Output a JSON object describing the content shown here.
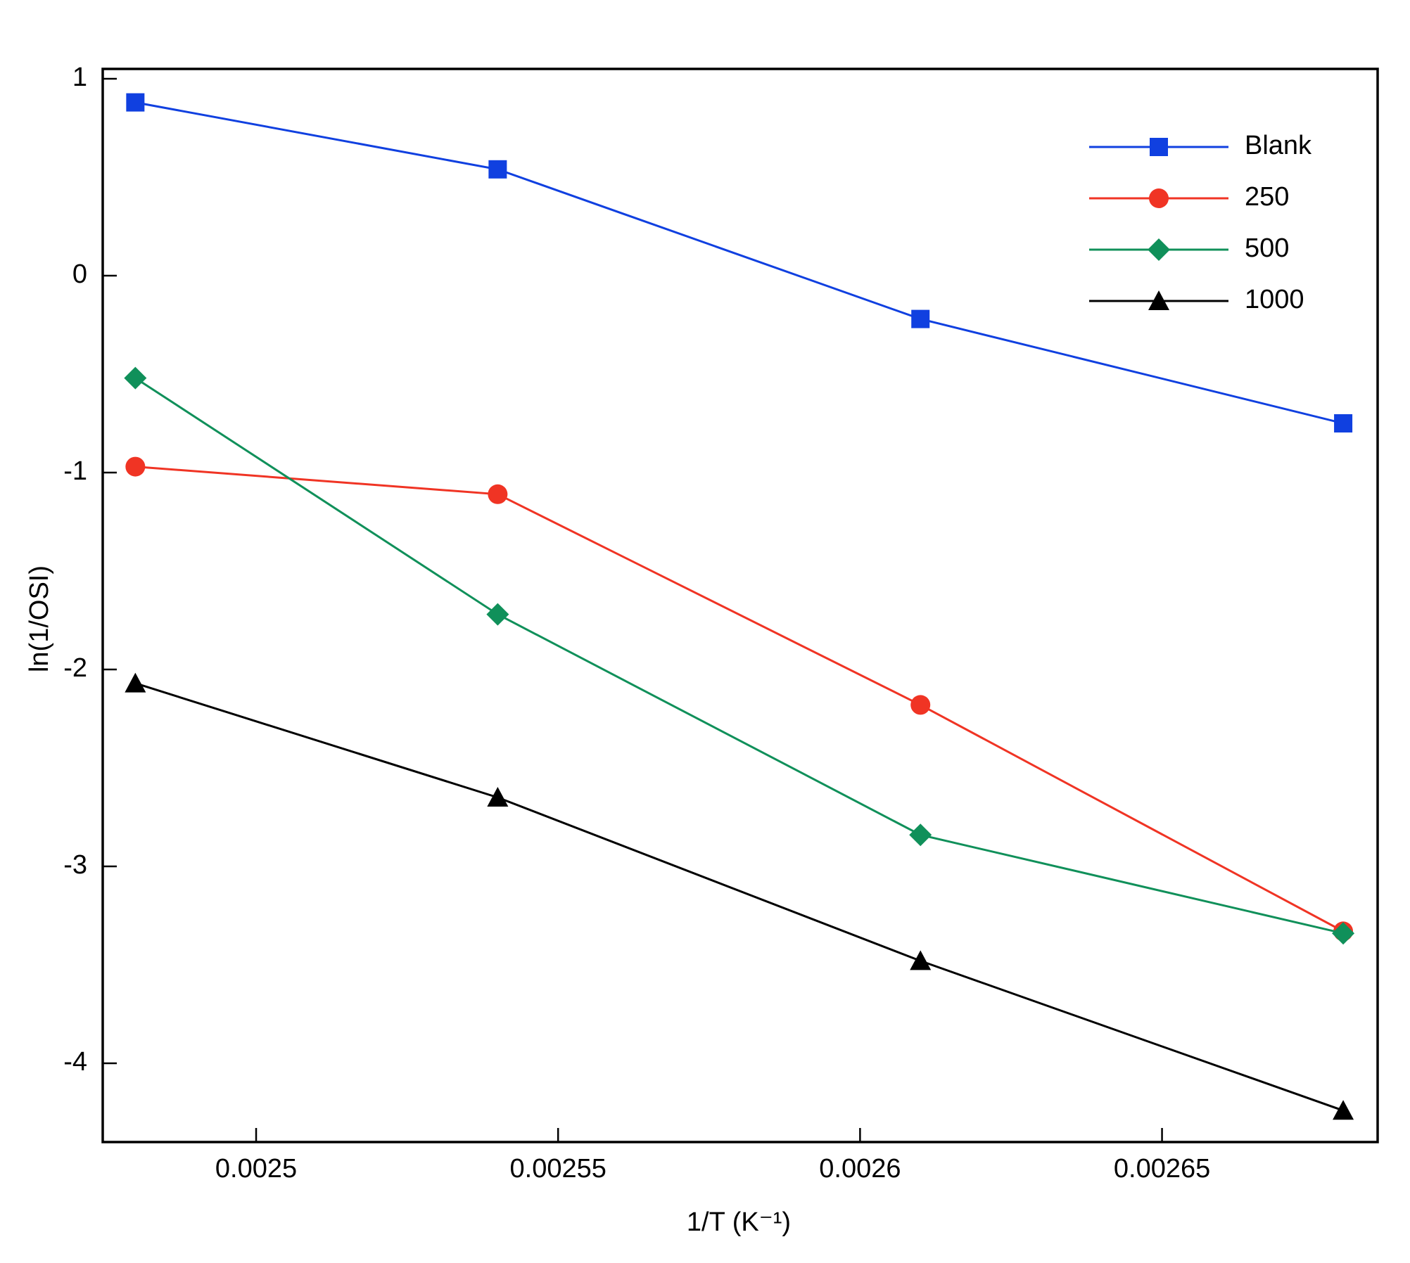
{
  "chart_data": {
    "type": "line",
    "x_label": "1/T (K⁻¹)",
    "y_label": "ln(1/OSI)",
    "x": [
      0.00248,
      0.00254,
      0.00261,
      0.00268
    ],
    "series": [
      {
        "name": "Blank",
        "color": "#1040e0",
        "marker": "square",
        "values": [
          0.88,
          0.54,
          -0.22,
          -0.75
        ]
      },
      {
        "name": "250",
        "color": "#f03424",
        "marker": "circle",
        "values": [
          -0.97,
          -1.11,
          -2.18,
          -3.33
        ]
      },
      {
        "name": "500",
        "color": "#10905a",
        "marker": "diamond",
        "values": [
          -0.52,
          -1.72,
          -2.84,
          -3.34
        ]
      },
      {
        "name": "1000",
        "color": "#000000",
        "marker": "triangle",
        "values": [
          -2.07,
          -2.65,
          -3.48,
          -4.24
        ]
      }
    ],
    "xlim": [
      0.0024746,
      0.0026857
    ],
    "xticks": [
      0.0025,
      0.00255,
      0.0026,
      0.00265
    ],
    "ylim": [
      -4.4,
      1.05
    ],
    "yticks": [
      1,
      0,
      -1,
      -2,
      -3,
      -4
    ],
    "legend": "top-right"
  }
}
